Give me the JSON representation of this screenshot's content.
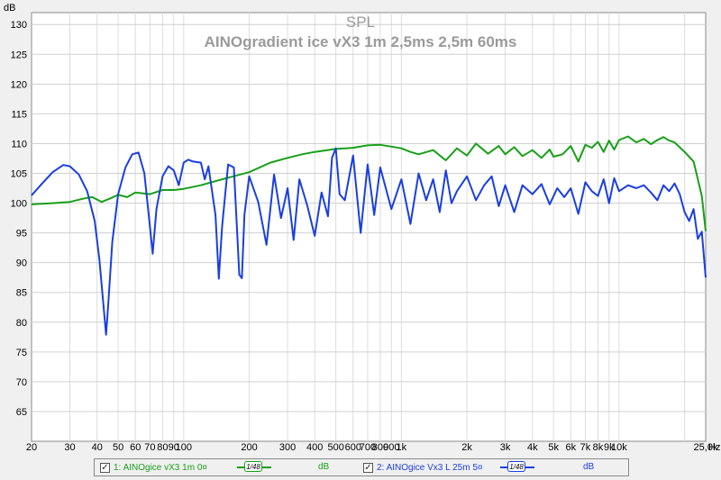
{
  "chart_data": {
    "type": "line",
    "title": "SPL",
    "subtitle": "AINOgradient ice vX3 1m 2,5ms 2,5m 60ms",
    "y_unit_label": "dB",
    "x_unit_label": "Hz",
    "x_scale": "log",
    "xlim": [
      20,
      25000
    ],
    "ylim": [
      60,
      132
    ],
    "grid": true,
    "y_ticks": [
      "65",
      "70",
      "75",
      "80",
      "85",
      "90",
      "95",
      "100",
      "105",
      "110",
      "115",
      "120",
      "125",
      "130"
    ],
    "x_ticks": [
      "20",
      "30",
      "40",
      "50",
      "60",
      "70",
      "80",
      "90",
      "100",
      "200",
      "300",
      "400",
      "500",
      "600",
      "700",
      "800",
      "900",
      "1k",
      "2k",
      "3k",
      "4k",
      "5k",
      "6k",
      "7k",
      "8k",
      "9k",
      "10k",
      "25,0k"
    ],
    "series": [
      {
        "name": "1: AINOgice vX3 1m 0¤",
        "color": "#17a017",
        "x": [
          20,
          25,
          30,
          35,
          38,
          42,
          46,
          50,
          55,
          60,
          70,
          80,
          90,
          100,
          120,
          150,
          200,
          250,
          300,
          350,
          400,
          500,
          600,
          700,
          800,
          900,
          1000,
          1100,
          1200,
          1400,
          1600,
          1800,
          2000,
          2200,
          2500,
          2800,
          3000,
          3300,
          3600,
          4000,
          4400,
          4800,
          5000,
          5500,
          6000,
          6500,
          7000,
          7500,
          8000,
          8500,
          9000,
          9500,
          10000,
          11000,
          12000,
          13000,
          14000,
          15000,
          16000,
          17000,
          18000,
          20000,
          22000,
          24000,
          25000
        ],
        "values": [
          99.8,
          100.0,
          100.2,
          100.8,
          101.0,
          100.2,
          100.8,
          101.4,
          101.0,
          101.8,
          101.5,
          102.2,
          102.2,
          102.4,
          103.0,
          104.0,
          105.2,
          106.8,
          107.6,
          108.2,
          108.6,
          109.1,
          109.3,
          109.7,
          109.8,
          109.5,
          109.2,
          108.6,
          108.2,
          108.9,
          107.2,
          109.2,
          108.0,
          110.0,
          108.3,
          109.6,
          108.2,
          109.4,
          107.9,
          108.9,
          107.6,
          109.0,
          107.8,
          108.2,
          109.6,
          107.0,
          109.8,
          109.3,
          110.3,
          108.6,
          110.5,
          109.0,
          110.6,
          111.2,
          110.2,
          110.8,
          109.9,
          110.6,
          111.1,
          110.5,
          110.2,
          108.6,
          107.0,
          101.2,
          95.3
        ]
      },
      {
        "name": "2: AINOgice Vx3 L 25m 5¤",
        "color": "#1a3fe0",
        "x": [
          20,
          22,
          25,
          28,
          30,
          33,
          36,
          39,
          41,
          43,
          44,
          45,
          47,
          50,
          54,
          58,
          62,
          66,
          70,
          72,
          75,
          80,
          85,
          90,
          95,
          100,
          105,
          110,
          120,
          125,
          130,
          140,
          145,
          150,
          160,
          170,
          180,
          185,
          190,
          200,
          220,
          240,
          260,
          280,
          300,
          320,
          340,
          370,
          400,
          430,
          460,
          480,
          500,
          520,
          550,
          600,
          650,
          700,
          750,
          800,
          900,
          1000,
          1100,
          1200,
          1300,
          1400,
          1500,
          1600,
          1700,
          1800,
          2000,
          2200,
          2400,
          2600,
          2800,
          3000,
          3300,
          3600,
          4000,
          4400,
          4800,
          5200,
          5600,
          6000,
          6500,
          7000,
          7500,
          8000,
          8500,
          9000,
          9500,
          10000,
          11000,
          12000,
          13000,
          14000,
          15000,
          16000,
          17000,
          18000,
          19000,
          20000,
          21000,
          22000,
          23000,
          24000,
          25000
        ],
        "values": [
          101.3,
          103.0,
          105.2,
          106.4,
          106.2,
          104.8,
          102.0,
          97.0,
          90.5,
          82.0,
          77.9,
          83.0,
          93.5,
          101.5,
          106.0,
          108.2,
          108.5,
          105.0,
          96.0,
          91.5,
          99.0,
          104.5,
          106.2,
          105.5,
          103.0,
          106.8,
          107.3,
          107.0,
          106.8,
          104.0,
          106.2,
          98.0,
          87.3,
          96.0,
          106.5,
          106.0,
          88.0,
          87.4,
          98.0,
          104.5,
          100.2,
          93.0,
          104.8,
          97.5,
          102.5,
          93.8,
          104.0,
          99.5,
          94.5,
          101.8,
          97.8,
          107.6,
          109.2,
          101.5,
          100.5,
          108.0,
          95.0,
          106.5,
          98.0,
          106.0,
          99.0,
          104.0,
          96.5,
          105.0,
          100.5,
          104.0,
          98.5,
          105.5,
          100.0,
          102.0,
          104.5,
          100.5,
          103.0,
          104.5,
          99.5,
          103.0,
          98.5,
          103.0,
          101.5,
          103.2,
          99.8,
          102.5,
          101.0,
          102.5,
          98.2,
          103.5,
          102.0,
          101.2,
          104.0,
          100.0,
          104.2,
          102.0,
          103.0,
          102.5,
          103.0,
          101.8,
          100.5,
          103.0,
          102.0,
          103.3,
          101.5,
          98.5,
          97.0,
          99.0,
          94.0,
          95.2,
          87.5
        ]
      }
    ]
  },
  "legend": {
    "item1_label": "1: AINOgice vX3 1m 0¤",
    "item2_label": "2: AINOgice Vx3 L 25m 5¤",
    "item1_smoothing": "1/48",
    "item2_smoothing": "1/48",
    "item1_unit": "dB",
    "item2_unit": "dB",
    "checkbox_mark": "✓"
  }
}
